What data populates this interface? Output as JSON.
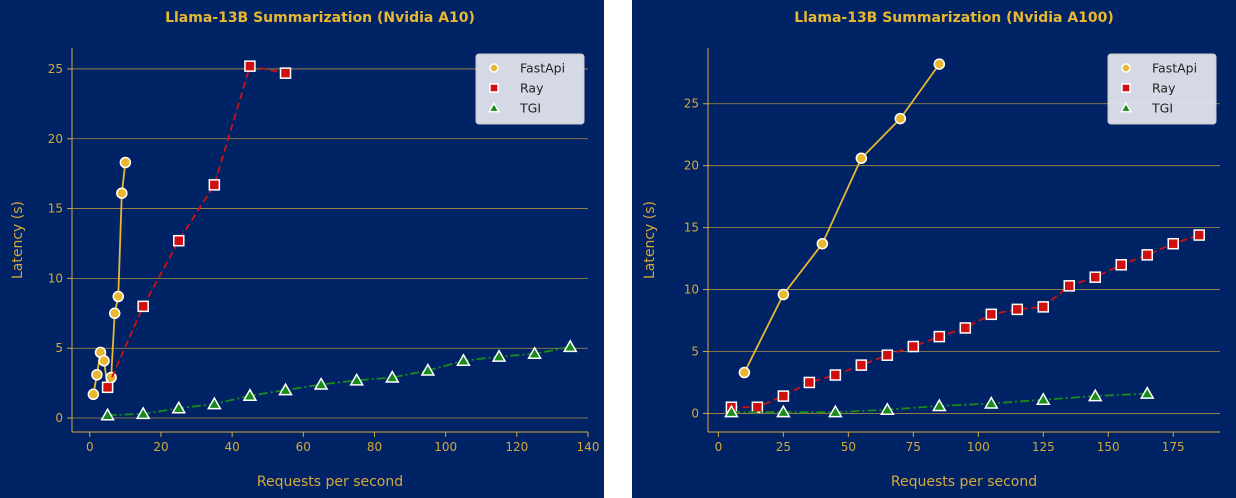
{
  "colors": {
    "background": "#002366",
    "accent": "#d4a93a",
    "title": "#e8b830",
    "fastapi": "#e8b830",
    "ray": "#d01010",
    "tgi": "#1a8a1a",
    "marker_edge": "#ffffff"
  },
  "chart_data": [
    {
      "type": "line",
      "title": "Llama-13B Summarization (Nvidia A10)",
      "xlabel": "Requests per second",
      "ylabel": "Latency (s)",
      "xlim": [
        -5,
        140
      ],
      "ylim": [
        -1,
        26.5
      ],
      "xticks": [
        0,
        20,
        40,
        60,
        80,
        100,
        120,
        140
      ],
      "yticks": [
        0,
        5,
        10,
        15,
        20,
        25
      ],
      "grid": "horizontal",
      "legend": "top-right",
      "series": [
        {
          "name": "FastApi",
          "marker": "circle",
          "linestyle": "solid",
          "x": [
            1,
            2,
            3,
            4,
            5,
            6,
            7,
            8,
            9,
            10
          ],
          "y": [
            1.7,
            3.1,
            4.7,
            4.1,
            2.2,
            2.9,
            7.5,
            8.7,
            16.1,
            18.3
          ]
        },
        {
          "name": "Ray",
          "marker": "square",
          "linestyle": "dashed",
          "x": [
            5,
            15,
            25,
            35,
            45,
            55
          ],
          "y": [
            2.2,
            8.0,
            12.7,
            16.7,
            25.2,
            24.7
          ]
        },
        {
          "name": "TGI",
          "marker": "triangle",
          "linestyle": "dashdot",
          "x": [
            5,
            15,
            25,
            35,
            45,
            55,
            65,
            75,
            85,
            95,
            105,
            115,
            125,
            135
          ],
          "y": [
            0.2,
            0.3,
            0.7,
            1.0,
            1.6,
            2.0,
            2.4,
            2.7,
            2.9,
            3.4,
            4.1,
            4.4,
            4.6,
            5.1
          ]
        }
      ]
    },
    {
      "type": "line",
      "title": "Llama-13B Summarization (Nvidia A100)",
      "xlabel": "Requests per second",
      "ylabel": "Latency (s)",
      "xlim": [
        -4,
        193
      ],
      "ylim": [
        -1.5,
        29.5
      ],
      "xticks": [
        0,
        25,
        50,
        75,
        100,
        125,
        150,
        175
      ],
      "yticks": [
        0,
        5,
        10,
        15,
        20,
        25
      ],
      "grid": "horizontal",
      "legend": "top-right",
      "series": [
        {
          "name": "FastApi",
          "marker": "circle",
          "linestyle": "solid",
          "x": [
            10,
            25,
            40,
            55,
            70,
            85
          ],
          "y": [
            3.3,
            9.6,
            13.7,
            20.6,
            23.8,
            28.2
          ]
        },
        {
          "name": "Ray",
          "marker": "square",
          "linestyle": "dashed",
          "x": [
            5,
            15,
            25,
            35,
            45,
            55,
            65,
            75,
            85,
            95,
            105,
            115,
            125,
            135,
            145,
            155,
            165,
            175,
            185
          ],
          "y": [
            0.5,
            0.5,
            1.4,
            2.5,
            3.1,
            3.9,
            4.7,
            5.4,
            6.2,
            6.9,
            8.0,
            8.4,
            8.6,
            10.3,
            11.0,
            12.0,
            12.8,
            13.7,
            14.4
          ]
        },
        {
          "name": "TGI",
          "marker": "triangle",
          "linestyle": "dashdot",
          "x": [
            5,
            25,
            45,
            65,
            85,
            105,
            125,
            145,
            165
          ],
          "y": [
            0.1,
            0.1,
            0.1,
            0.3,
            0.6,
            0.8,
            1.1,
            1.4,
            1.6
          ]
        }
      ]
    }
  ]
}
